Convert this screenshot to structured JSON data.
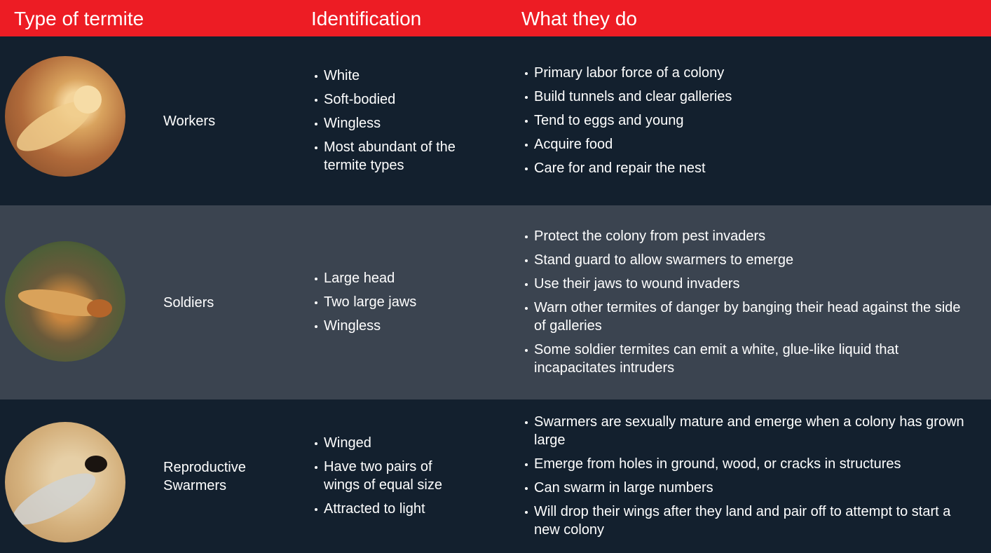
{
  "table": {
    "headers": [
      "Type of termite",
      "Identification",
      "What they do"
    ],
    "rows": [
      {
        "name": "Workers",
        "identification": [
          "White",
          "Soft-bodied",
          "Wingless",
          "Most abundant of the termite types"
        ],
        "actions": [
          "Primary labor force of a colony",
          "Build tunnels and clear galleries",
          "Tend to eggs and young",
          "Acquire food",
          "Care for and repair the nest"
        ]
      },
      {
        "name": "Soldiers",
        "identification": [
          "Large head",
          "Two large jaws",
          "Wingless"
        ],
        "actions": [
          "Protect the colony from pest invaders",
          "Stand guard to allow swarmers to emerge",
          "Use their jaws to wound invaders",
          "Warn other termites of danger by banging their head against the side of galleries",
          "Some soldier termites can emit a white, glue-like liquid that incapacitates intruders"
        ]
      },
      {
        "name": "Reproductive Swarmers",
        "identification": [
          "Winged",
          "Have two pairs of wings of equal size",
          "Attracted to light"
        ],
        "actions": [
          "Swarmers are sexually mature and emerge when a colony has grown large",
          "Emerge from holes in ground, wood, or cracks in structures",
          "Can swarm in large numbers",
          "Will drop their wings after they land and pair off to attempt to start a new colony"
        ]
      }
    ]
  }
}
